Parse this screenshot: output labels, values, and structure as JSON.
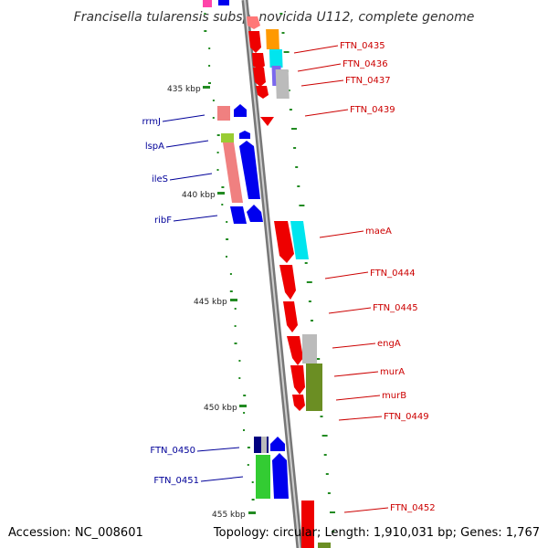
{
  "title": "Francisella tularensis subsp. novicida U112, complete genome",
  "footer": {
    "accession": "Accession: NC_008601",
    "topology": "Topology: circular; Length: 1,910,031 bp; Genes: 1,767"
  },
  "scale_labels": [
    "435 kbp",
    "440 kbp",
    "445 kbp",
    "450 kbp",
    "455 kbp"
  ],
  "genes_right": [
    "FTN_0435",
    "FTN_0436",
    "FTN_0437",
    "FTN_0439",
    "maeA",
    "FTN_0444",
    "FTN_0445",
    "engA",
    "murA",
    "murB",
    "FTN_0449",
    "FTN_0452"
  ],
  "genes_left": [
    "rrmJ",
    "lspA",
    "ileS",
    "ribF",
    "FTN_0450",
    "FTN_0451"
  ],
  "colors": {
    "forward_strand": "#0000ee",
    "reverse_strand": "#ee0000",
    "backbone": "#888888",
    "gc_ticks": "#228B22",
    "label_red": "#cc0000",
    "label_blue": "#000099",
    "orange": "#ff9900",
    "cyan": "#00e5ee",
    "salmon": "#f08080",
    "green": "#33cc33",
    "olive": "#6b8e23",
    "gray": "#bbbbbb",
    "purple": "#7b68ee",
    "navy": "#000080"
  }
}
